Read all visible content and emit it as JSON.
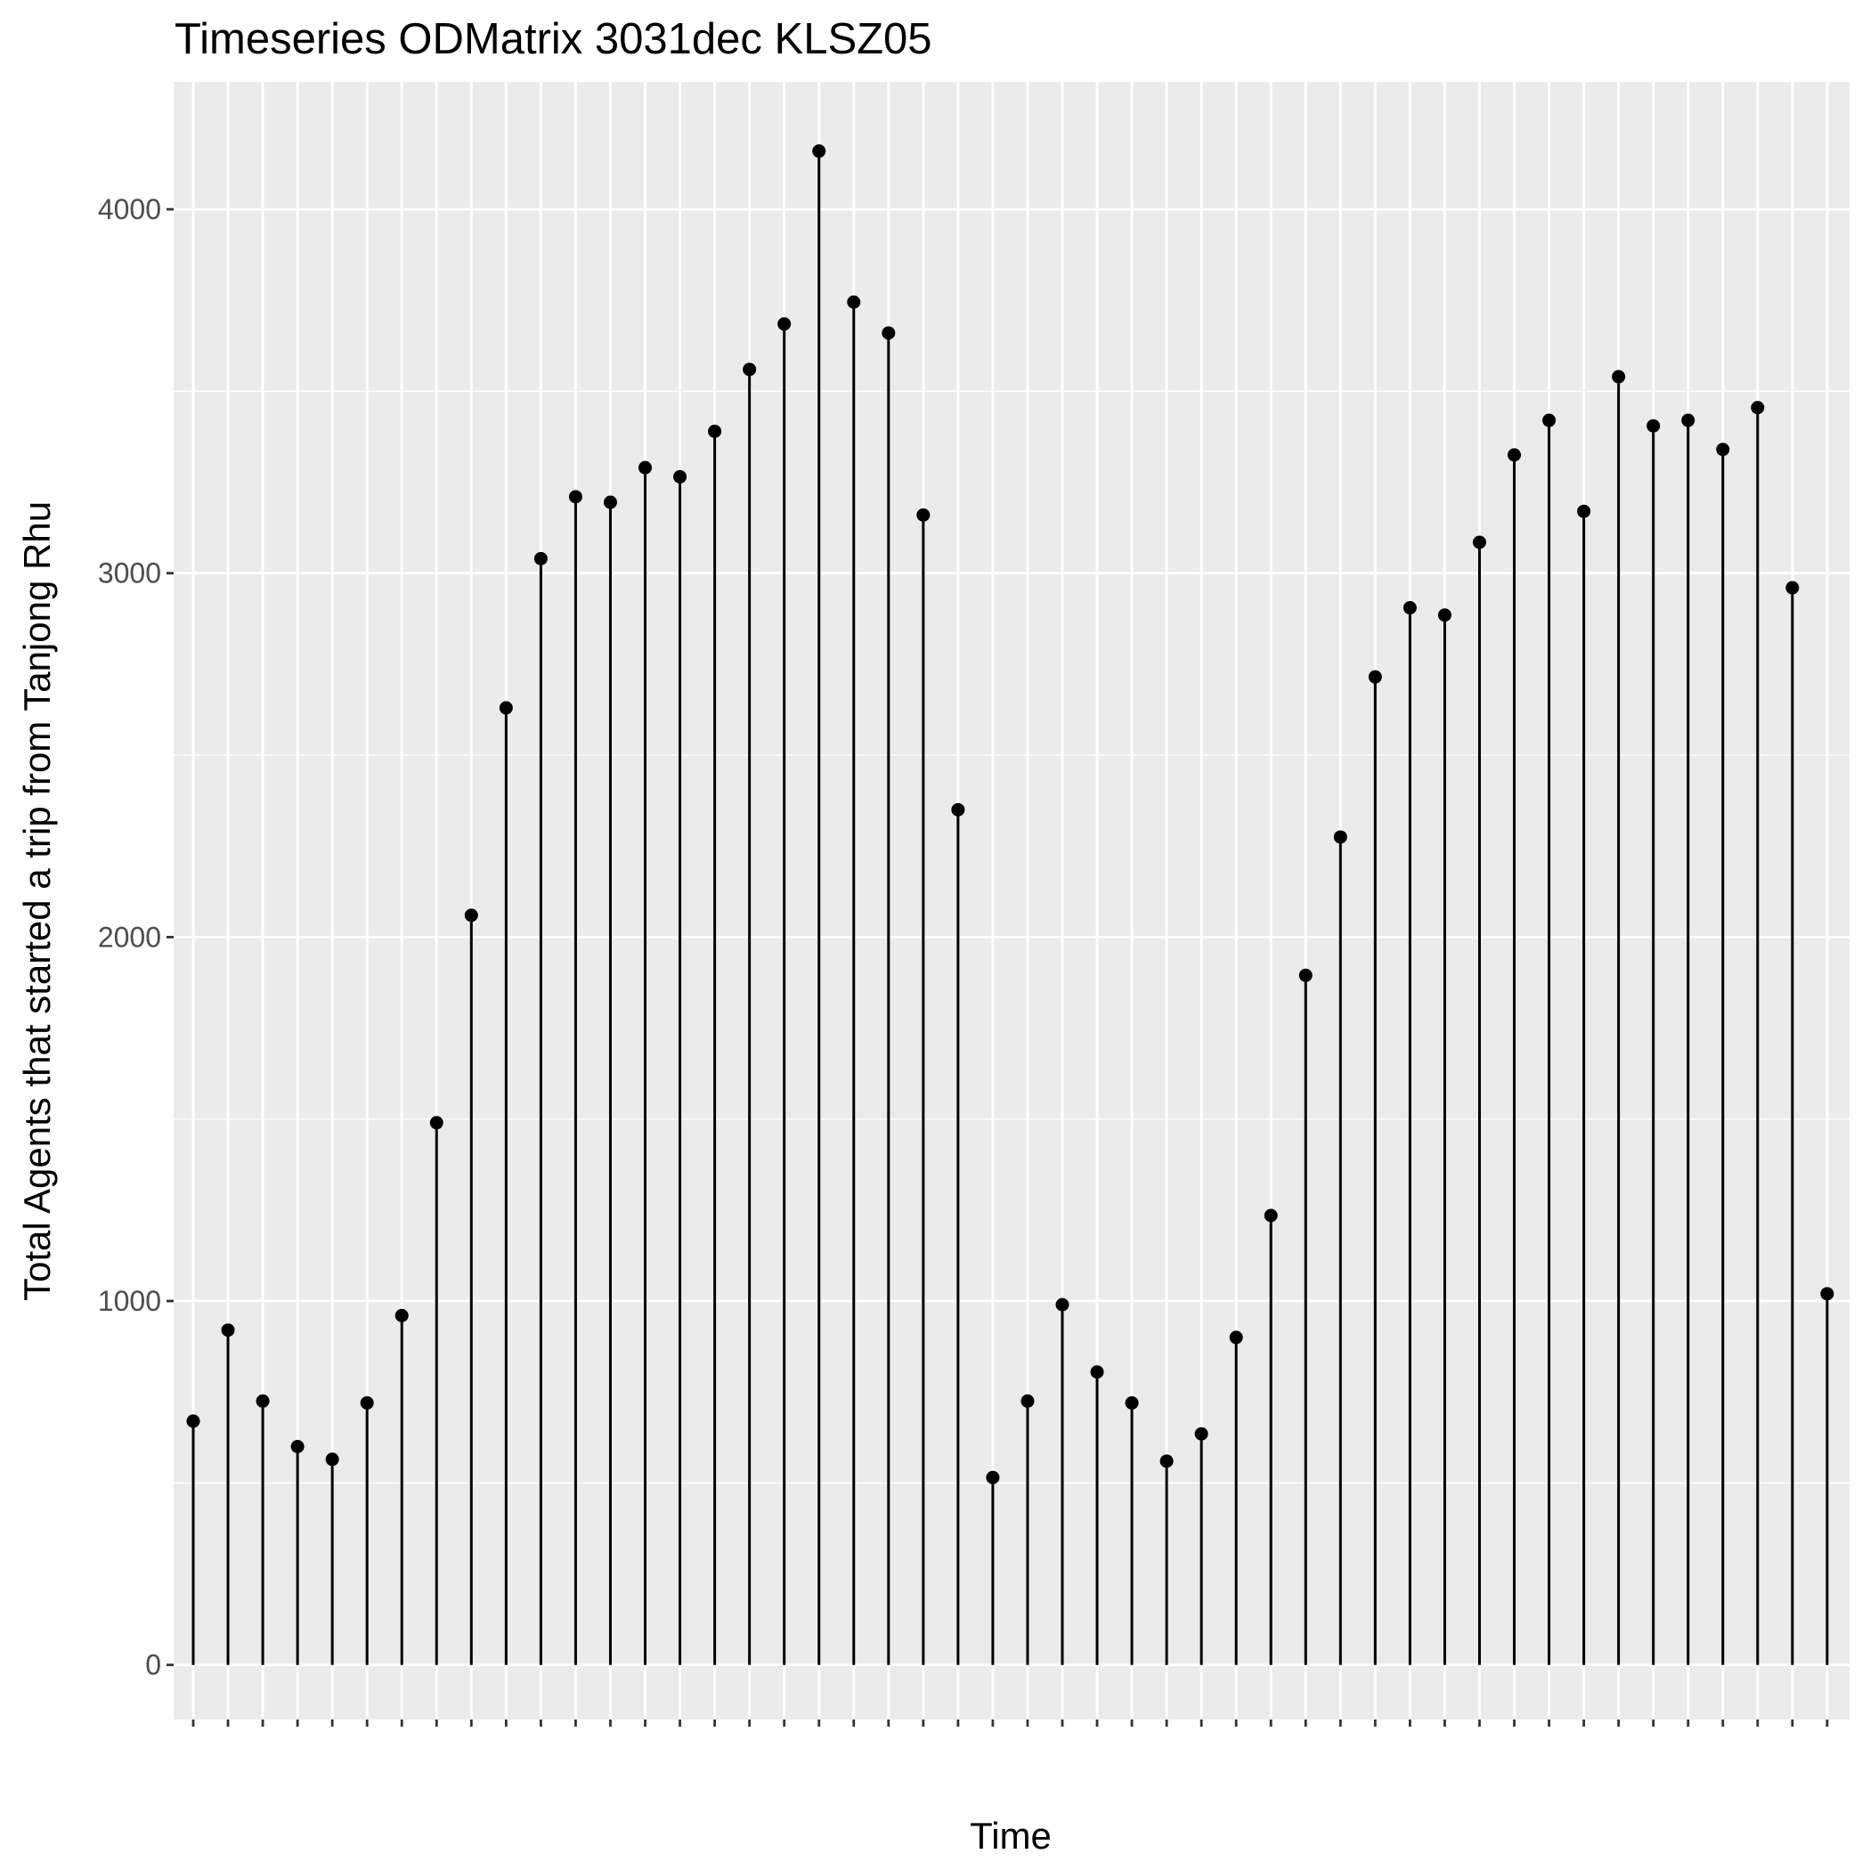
{
  "chart_data": {
    "type": "lollipop",
    "title": "Timeseries ODMatrix 3031dec KLSZ05",
    "xlabel": "Time",
    "ylabel": "Total Agents that started a trip from Tanjong Rhu",
    "ylim": [
      -150,
      4350
    ],
    "yticks": [
      0,
      1000,
      2000,
      3000,
      4000
    ],
    "grid": true,
    "colors": {
      "panel": "#ebebeb",
      "grid": "#ffffff",
      "marks": "#000000",
      "ticks": "#333333"
    },
    "values": [
      670,
      920,
      725,
      600,
      565,
      720,
      960,
      1490,
      2060,
      2630,
      3040,
      3210,
      3195,
      3290,
      3265,
      3390,
      3560,
      3685,
      4160,
      3745,
      3660,
      3160,
      2350,
      515,
      725,
      990,
      805,
      720,
      560,
      635,
      900,
      1235,
      1895,
      2275,
      2715,
      2905,
      2885,
      3085,
      3325,
      3420,
      3170,
      3540,
      3405,
      3420,
      3340,
      3455,
      2960,
      1020
    ]
  }
}
